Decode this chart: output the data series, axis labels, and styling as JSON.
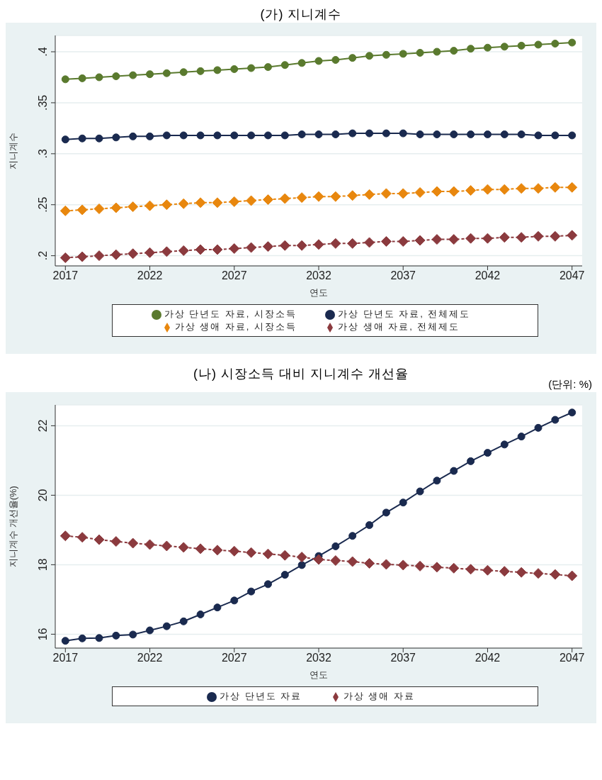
{
  "chart_data": [
    {
      "type": "line",
      "title": "(가) 지니계수",
      "xlabel": "연도",
      "ylabel": "지니계수",
      "x": [
        2017,
        2018,
        2019,
        2020,
        2021,
        2022,
        2023,
        2024,
        2025,
        2026,
        2027,
        2028,
        2029,
        2030,
        2031,
        2032,
        2033,
        2034,
        2035,
        2036,
        2037,
        2038,
        2039,
        2040,
        2041,
        2042,
        2043,
        2044,
        2045,
        2046,
        2047
      ],
      "xlim": [
        2016.4,
        2047.6
      ],
      "xticks": [
        2017,
        2022,
        2027,
        2032,
        2037,
        2042,
        2047
      ],
      "ylim": [
        0.19,
        0.416
      ],
      "yticks": [
        {
          "value": 0.2,
          "label": ".2"
        },
        {
          "value": 0.25,
          "label": ".25"
        },
        {
          "value": 0.3,
          "label": ".3"
        },
        {
          "value": 0.35,
          "label": ".35"
        },
        {
          "value": 0.4,
          "label": ".4"
        }
      ],
      "grid": "y",
      "legend": "bottom",
      "series": [
        {
          "name": "가상 단년도 자료, 시장소득",
          "color": "#5a7a2e",
          "marker": "circle",
          "line_style": "solid",
          "values": [
            0.373,
            0.374,
            0.375,
            0.376,
            0.377,
            0.378,
            0.379,
            0.38,
            0.381,
            0.382,
            0.383,
            0.384,
            0.385,
            0.387,
            0.389,
            0.391,
            0.392,
            0.394,
            0.396,
            0.397,
            0.398,
            0.399,
            0.4,
            0.401,
            0.403,
            0.404,
            0.405,
            0.406,
            0.407,
            0.408,
            0.409
          ]
        },
        {
          "name": "가상 생애 자료, 시장소득",
          "color": "#e8870e",
          "marker": "diamond",
          "line_style": "dashed",
          "values": [
            0.244,
            0.245,
            0.246,
            0.247,
            0.248,
            0.249,
            0.25,
            0.251,
            0.252,
            0.252,
            0.253,
            0.254,
            0.255,
            0.256,
            0.257,
            0.258,
            0.258,
            0.259,
            0.26,
            0.261,
            0.261,
            0.262,
            0.263,
            0.263,
            0.264,
            0.265,
            0.265,
            0.266,
            0.266,
            0.267,
            0.267
          ]
        },
        {
          "name": "가상 단년도 자료, 전체제도",
          "color": "#1a2a4f",
          "marker": "circle",
          "line_style": "solid",
          "values": [
            0.314,
            0.315,
            0.315,
            0.316,
            0.317,
            0.317,
            0.318,
            0.318,
            0.318,
            0.318,
            0.318,
            0.318,
            0.318,
            0.318,
            0.319,
            0.319,
            0.319,
            0.32,
            0.32,
            0.32,
            0.32,
            0.319,
            0.319,
            0.319,
            0.319,
            0.319,
            0.319,
            0.319,
            0.318,
            0.318,
            0.318
          ]
        },
        {
          "name": "가상 생애 자료, 전체제도",
          "color": "#8b3a3e",
          "marker": "diamond",
          "line_style": "dashed",
          "values": [
            0.198,
            0.199,
            0.2,
            0.201,
            0.202,
            0.203,
            0.204,
            0.205,
            0.206,
            0.206,
            0.207,
            0.208,
            0.209,
            0.21,
            0.21,
            0.211,
            0.212,
            0.212,
            0.213,
            0.214,
            0.214,
            0.215,
            0.216,
            0.216,
            0.217,
            0.217,
            0.218,
            0.218,
            0.219,
            0.219,
            0.22
          ]
        }
      ]
    },
    {
      "type": "line",
      "title": "(나) 시장소득 대비 지니계수 개선율",
      "xlabel": "연도",
      "ylabel": "지니계수 개선율(%)",
      "annotations": [
        "(단위: %)"
      ],
      "x": [
        2017,
        2018,
        2019,
        2020,
        2021,
        2022,
        2023,
        2024,
        2025,
        2026,
        2027,
        2028,
        2029,
        2030,
        2031,
        2032,
        2033,
        2034,
        2035,
        2036,
        2037,
        2038,
        2039,
        2040,
        2041,
        2042,
        2043,
        2044,
        2045,
        2046,
        2047
      ],
      "xlim": [
        2016.4,
        2047.6
      ],
      "xticks": [
        2017,
        2022,
        2027,
        2032,
        2037,
        2042,
        2047
      ],
      "ylim": [
        15.6,
        22.6
      ],
      "yticks": [
        16,
        18,
        20,
        22
      ],
      "grid": "y",
      "legend": "bottom",
      "series": [
        {
          "name": "가상 단년도 자료",
          "color": "#1a2a4f",
          "marker": "circle",
          "line_style": "solid",
          "values": [
            15.81,
            15.88,
            15.89,
            15.96,
            15.99,
            16.11,
            16.23,
            16.37,
            16.57,
            16.77,
            16.97,
            17.23,
            17.44,
            17.71,
            17.99,
            18.25,
            18.53,
            18.83,
            19.14,
            19.5,
            19.79,
            20.11,
            20.42,
            20.7,
            20.98,
            21.22,
            21.46,
            21.69,
            21.94,
            22.17,
            22.38
          ]
        },
        {
          "name": "가상 생애 자료",
          "color": "#8b3a3e",
          "marker": "diamond",
          "line_style": "dashed",
          "values": [
            18.83,
            18.79,
            18.72,
            18.67,
            18.62,
            18.58,
            18.54,
            18.5,
            18.46,
            18.42,
            18.39,
            18.35,
            18.31,
            18.27,
            18.22,
            18.15,
            18.12,
            18.09,
            18.04,
            18.01,
            17.99,
            17.96,
            17.93,
            17.9,
            17.87,
            17.84,
            17.81,
            17.78,
            17.75,
            17.72,
            17.68
          ]
        }
      ]
    }
  ]
}
